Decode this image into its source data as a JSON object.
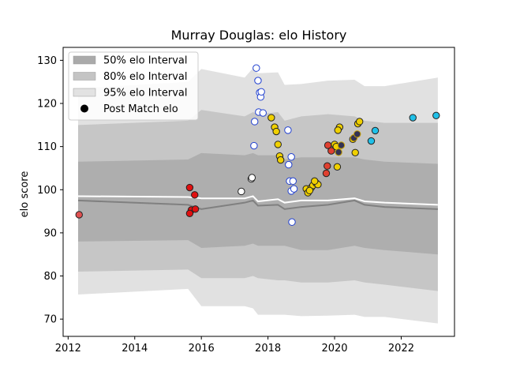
{
  "chart_data": {
    "type": "scatter",
    "title": "Murray Douglas: elo History",
    "xlabel": "",
    "ylabel": "elo score",
    "xlim": [
      2011.85,
      2023.6
    ],
    "ylim": [
      66,
      133
    ],
    "xticks": [
      2012,
      2014,
      2016,
      2018,
      2020,
      2022
    ],
    "yticks": [
      70,
      80,
      90,
      100,
      110,
      120,
      130
    ],
    "grid": false,
    "legend_position": "top-left",
    "legend": [
      {
        "label": "50% elo Interval",
        "kind": "band",
        "color": "#aaaaaa"
      },
      {
        "label": "80% elo Interval",
        "kind": "band",
        "color": "#c4c4c4"
      },
      {
        "label": "95% elo Interval",
        "kind": "band",
        "color": "#e2e2e2"
      },
      {
        "label": "Post Match elo",
        "kind": "marker",
        "color": "#000000"
      }
    ],
    "intervals": {
      "x": [
        2012.3,
        2015.6,
        2016.0,
        2017.3,
        2017.55,
        2017.7,
        2018.3,
        2018.5,
        2019.0,
        2019.8,
        2020.6,
        2020.9,
        2021.5,
        2023.1
      ],
      "p95_upper": [
        123.5,
        125.0,
        128.0,
        126.0,
        128.2,
        127.0,
        127.2,
        124.3,
        124.5,
        125.3,
        125.5,
        124.0,
        124.0,
        126.0
      ],
      "p95_lower": [
        75.7,
        77.0,
        73.0,
        73.0,
        72.5,
        71.0,
        71.0,
        71.0,
        70.7,
        70.8,
        71.0,
        70.5,
        70.5,
        69.0
      ],
      "p80_upper": [
        115.0,
        116.0,
        118.5,
        117.0,
        118.0,
        117.5,
        118.0,
        116.0,
        117.0,
        117.5,
        117.0,
        116.0,
        115.5,
        115.5
      ],
      "p80_lower": [
        81.0,
        81.5,
        79.5,
        79.5,
        80.0,
        79.5,
        79.0,
        79.0,
        78.5,
        78.5,
        79.0,
        78.5,
        78.0,
        76.5
      ],
      "p50_upper": [
        106.5,
        107.0,
        108.5,
        108.0,
        108.5,
        108.0,
        108.0,
        107.0,
        107.5,
        107.5,
        107.5,
        107.0,
        106.5,
        106.0
      ],
      "p50_lower": [
        88.0,
        88.3,
        86.5,
        87.0,
        87.5,
        87.0,
        87.0,
        87.0,
        86.0,
        86.0,
        87.0,
        86.5,
        86.0,
        85.0
      ],
      "median": [
        97.5,
        96.5,
        95.5,
        97.0,
        97.5,
        96.3,
        96.5,
        95.5,
        96.0,
        96.5,
        97.5,
        96.5,
        96.0,
        95.5
      ],
      "mean": [
        98.5,
        98.3,
        98.0,
        98.0,
        98.5,
        97.3,
        97.8,
        97.0,
        97.5,
        97.5,
        98.0,
        97.3,
        97.0,
        96.5
      ]
    },
    "series": [
      {
        "color": "#e05050",
        "points": [
          [
            2012.33,
            94.2
          ]
        ]
      },
      {
        "color": "#e01010",
        "points": [
          [
            2015.65,
            100.5
          ],
          [
            2015.8,
            98.8
          ],
          [
            2015.7,
            95.3
          ],
          [
            2015.65,
            94.5
          ],
          [
            2015.82,
            95.5
          ]
        ]
      },
      {
        "color": "#ffffff",
        "points": [
          [
            2017.2,
            99.6
          ],
          [
            2017.5,
            102.5
          ],
          [
            2017.52,
            102.8
          ]
        ]
      },
      {
        "color": "#ffffff",
        "edge": "#1f3fd0",
        "points": [
          [
            2017.65,
            128.2
          ],
          [
            2017.7,
            125.3
          ],
          [
            2017.75,
            122.5
          ],
          [
            2017.78,
            121.5
          ],
          [
            2017.8,
            122.7
          ],
          [
            2017.72,
            118.0
          ],
          [
            2017.85,
            117.8
          ],
          [
            2017.6,
            115.8
          ],
          [
            2017.58,
            110.2
          ],
          [
            2018.6,
            113.8
          ],
          [
            2018.7,
            107.6
          ],
          [
            2018.62,
            105.8
          ],
          [
            2018.65,
            102.0
          ],
          [
            2018.75,
            102.0
          ],
          [
            2018.7,
            99.7
          ],
          [
            2018.78,
            100.2
          ],
          [
            2018.72,
            92.5
          ]
        ]
      },
      {
        "color": "#f0d000",
        "points": [
          [
            2018.1,
            116.7
          ],
          [
            2018.2,
            114.5
          ],
          [
            2018.25,
            113.5
          ],
          [
            2018.3,
            110.5
          ],
          [
            2018.35,
            107.8
          ],
          [
            2018.38,
            106.9
          ],
          [
            2019.15,
            100.2
          ],
          [
            2019.2,
            99.3
          ],
          [
            2019.3,
            100.5
          ],
          [
            2019.35,
            101.0
          ],
          [
            2019.25,
            99.8
          ],
          [
            2019.45,
            101.5
          ],
          [
            2019.5,
            101.2
          ],
          [
            2019.4,
            102.0
          ],
          [
            2020.15,
            114.5
          ],
          [
            2020.1,
            113.8
          ],
          [
            2020.0,
            110.5
          ],
          [
            2020.05,
            110.0
          ],
          [
            2020.55,
            111.7
          ],
          [
            2020.7,
            115.3
          ],
          [
            2020.75,
            115.8
          ],
          [
            2020.62,
            108.6
          ],
          [
            2020.08,
            105.3
          ]
        ]
      },
      {
        "color": "#e04030",
        "points": [
          [
            2019.8,
            110.3
          ],
          [
            2019.9,
            109.0
          ],
          [
            2019.78,
            105.5
          ],
          [
            2019.75,
            103.8
          ]
        ]
      },
      {
        "color": "#333355",
        "edge": "#c8a000",
        "points": [
          [
            2020.12,
            108.7
          ],
          [
            2020.2,
            110.3
          ],
          [
            2020.58,
            112.0
          ],
          [
            2020.68,
            112.9
          ]
        ]
      },
      {
        "color": "#20c0e8",
        "points": [
          [
            2021.1,
            111.3
          ],
          [
            2021.22,
            113.7
          ],
          [
            2022.35,
            116.7
          ],
          [
            2023.05,
            117.2
          ]
        ]
      }
    ]
  }
}
